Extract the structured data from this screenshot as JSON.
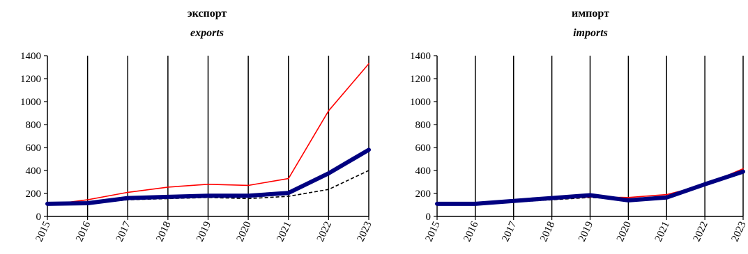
{
  "chart_data": [
    {
      "type": "line",
      "title": "экспорт",
      "subtitle": "exports",
      "ylim": [
        0,
        1400
      ],
      "yticks": [
        0,
        200,
        400,
        600,
        800,
        1000,
        1200,
        1400
      ],
      "categories": [
        "2015",
        "2016",
        "2017",
        "2018",
        "2019",
        "2020",
        "2021",
        "2022",
        "2023"
      ],
      "grid": "vertical",
      "series": [
        {
          "color": "#000000",
          "style": "dashed",
          "values": [
            100,
            110,
            145,
            155,
            165,
            155,
            175,
            235,
            400
          ]
        },
        {
          "color": "#ff0000",
          "style": "solid-thin",
          "values": [
            100,
            145,
            210,
            255,
            280,
            270,
            330,
            920,
            1330
          ]
        },
        {
          "color": "#000080",
          "style": "solid-thick",
          "values": [
            110,
            115,
            160,
            170,
            180,
            180,
            205,
            375,
            580
          ]
        }
      ]
    },
    {
      "type": "line",
      "title": "импорт",
      "subtitle": "imports",
      "ylim": [
        0,
        1400
      ],
      "yticks": [
        0,
        200,
        400,
        600,
        800,
        1000,
        1200,
        1400
      ],
      "categories": [
        "2015",
        "2016",
        "2017",
        "2018",
        "2019",
        "2020",
        "2021",
        "2022",
        "2023"
      ],
      "grid": "vertical",
      "series": [
        {
          "color": "#000000",
          "style": "dashed",
          "values": [
            100,
            100,
            125,
            145,
            165,
            150,
            170,
            270,
            400
          ]
        },
        {
          "color": "#ff0000",
          "style": "solid-thin",
          "values": [
            100,
            105,
            130,
            150,
            170,
            165,
            190,
            275,
            415
          ]
        },
        {
          "color": "#000080",
          "style": "solid-thick",
          "values": [
            110,
            110,
            135,
            160,
            185,
            140,
            165,
            280,
            390
          ]
        }
      ]
    }
  ]
}
